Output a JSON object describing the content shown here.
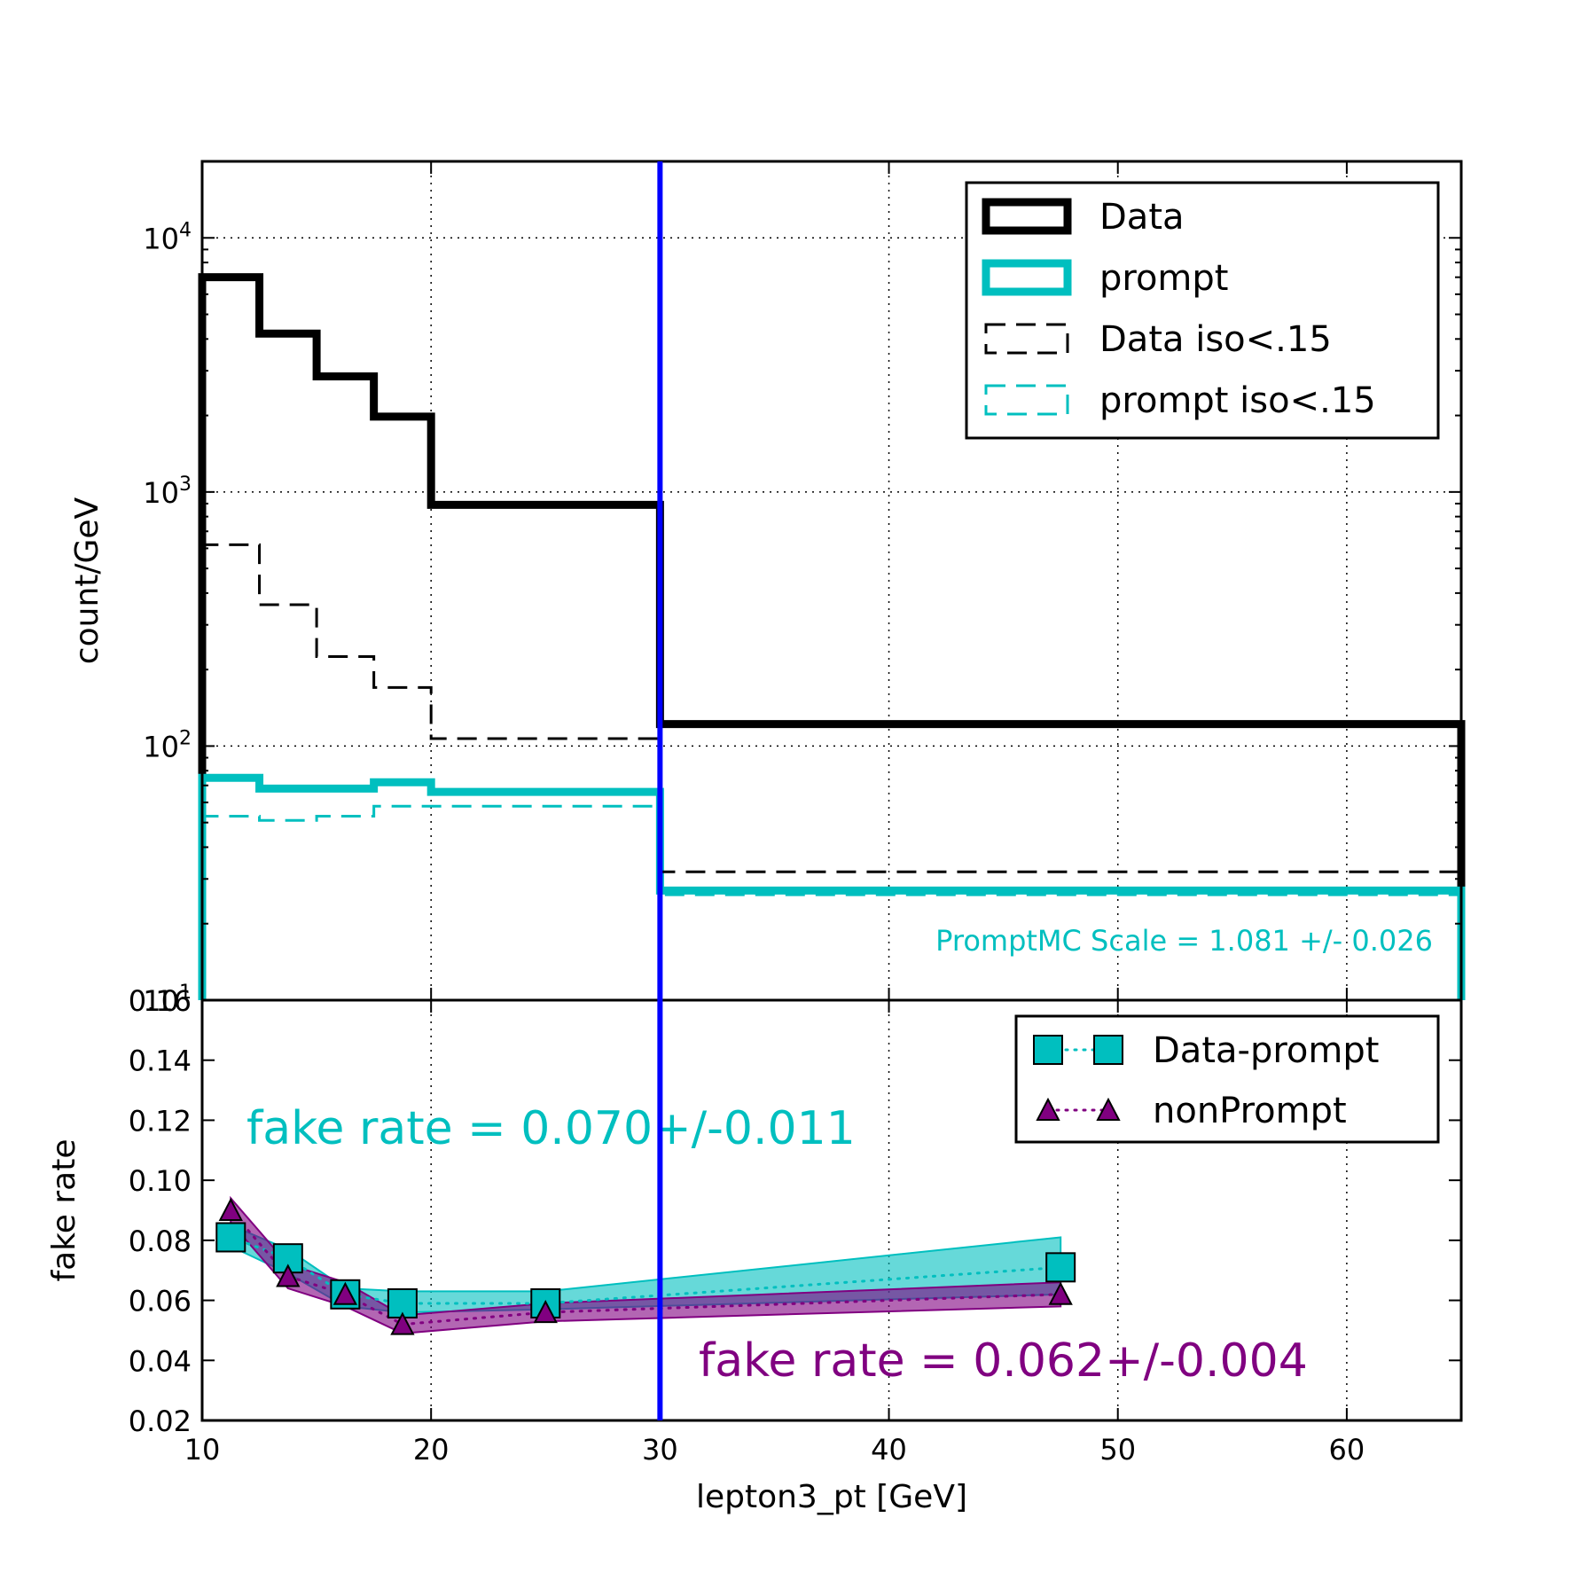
{
  "colors": {
    "data": "#000000",
    "prompt": "#00bfbf",
    "nonprompt": "#800080",
    "vline": "#0000ff",
    "cyan_band": "#00bfbf",
    "purple_band": "#800080"
  },
  "chart_data": [
    {
      "type": "line",
      "ylabel": "count/GeV",
      "yscale": "log",
      "xlim": [
        10,
        65
      ],
      "ylim": [
        10,
        20000
      ],
      "grid": true,
      "legend_position": "top-right",
      "y_ticklabels": [
        {
          "value": 10000,
          "base": "10",
          "exp": "4"
        },
        {
          "value": 1000,
          "base": "10",
          "exp": "3"
        },
        {
          "value": 100,
          "base": "10",
          "exp": "2"
        },
        {
          "value": 10,
          "base": "10",
          "exp": "1"
        }
      ],
      "bin_edges": [
        10,
        12.5,
        15,
        17.5,
        20,
        30,
        65
      ],
      "series": [
        {
          "name": "Data",
          "style": "solid-thick",
          "color": "#000000",
          "values": [
            7000,
            4200,
            2850,
            1980,
            890,
            122
          ]
        },
        {
          "name": "prompt",
          "style": "solid-thick",
          "color": "#00bfbf",
          "values": [
            75,
            68,
            68,
            72,
            66,
            27
          ]
        },
        {
          "name": "Data iso<.15",
          "style": "dashed",
          "color": "#000000",
          "values": [
            620,
            360,
            225,
            170,
            107,
            32
          ]
        },
        {
          "name": "prompt iso<.15",
          "style": "dashed",
          "color": "#00bfbf",
          "values": [
            53,
            51,
            53,
            58,
            58,
            26
          ]
        }
      ],
      "annotation": "PromptMC Scale = 1.081 +/- 0.026",
      "vline_x": 30
    },
    {
      "type": "line",
      "xlabel": "lepton3_pt [GeV]",
      "ylabel": "fake rate",
      "xlim": [
        10,
        65
      ],
      "ylim": [
        0.02,
        0.16
      ],
      "grid": true,
      "legend_position": "top-right",
      "x_ticklabels": [
        "10",
        "20",
        "30",
        "40",
        "50",
        "60"
      ],
      "y_ticklabels": [
        "0.02",
        "0.04",
        "0.06",
        "0.08",
        "0.10",
        "0.12",
        "0.14",
        "0.16"
      ],
      "series": [
        {
          "name": "Data-prompt",
          "marker": "square",
          "color": "#00bfbf",
          "x": [
            11.25,
            13.75,
            16.25,
            18.75,
            25,
            47.5
          ],
          "y": [
            0.081,
            0.074,
            0.062,
            0.059,
            0.059,
            0.071
          ],
          "band_low": [
            0.078,
            0.069,
            0.058,
            0.056,
            0.057,
            0.062
          ],
          "band_high": [
            0.085,
            0.077,
            0.064,
            0.063,
            0.063,
            0.081
          ]
        },
        {
          "name": "nonPrompt",
          "marker": "triangle",
          "color": "#800080",
          "x": [
            11.25,
            13.75,
            16.25,
            18.75,
            25,
            47.5
          ],
          "y": [
            0.09,
            0.068,
            0.062,
            0.052,
            0.056,
            0.062
          ],
          "band_low": [
            0.086,
            0.064,
            0.058,
            0.049,
            0.053,
            0.058
          ],
          "band_high": [
            0.094,
            0.072,
            0.066,
            0.055,
            0.059,
            0.066
          ]
        }
      ],
      "annotations": [
        {
          "text": "fake rate = 0.070+/-0.011",
          "color": "#00bfbf"
        },
        {
          "text": "fake rate = 0.062+/-0.004",
          "color": "#800080"
        }
      ],
      "vline_x": 30
    }
  ]
}
